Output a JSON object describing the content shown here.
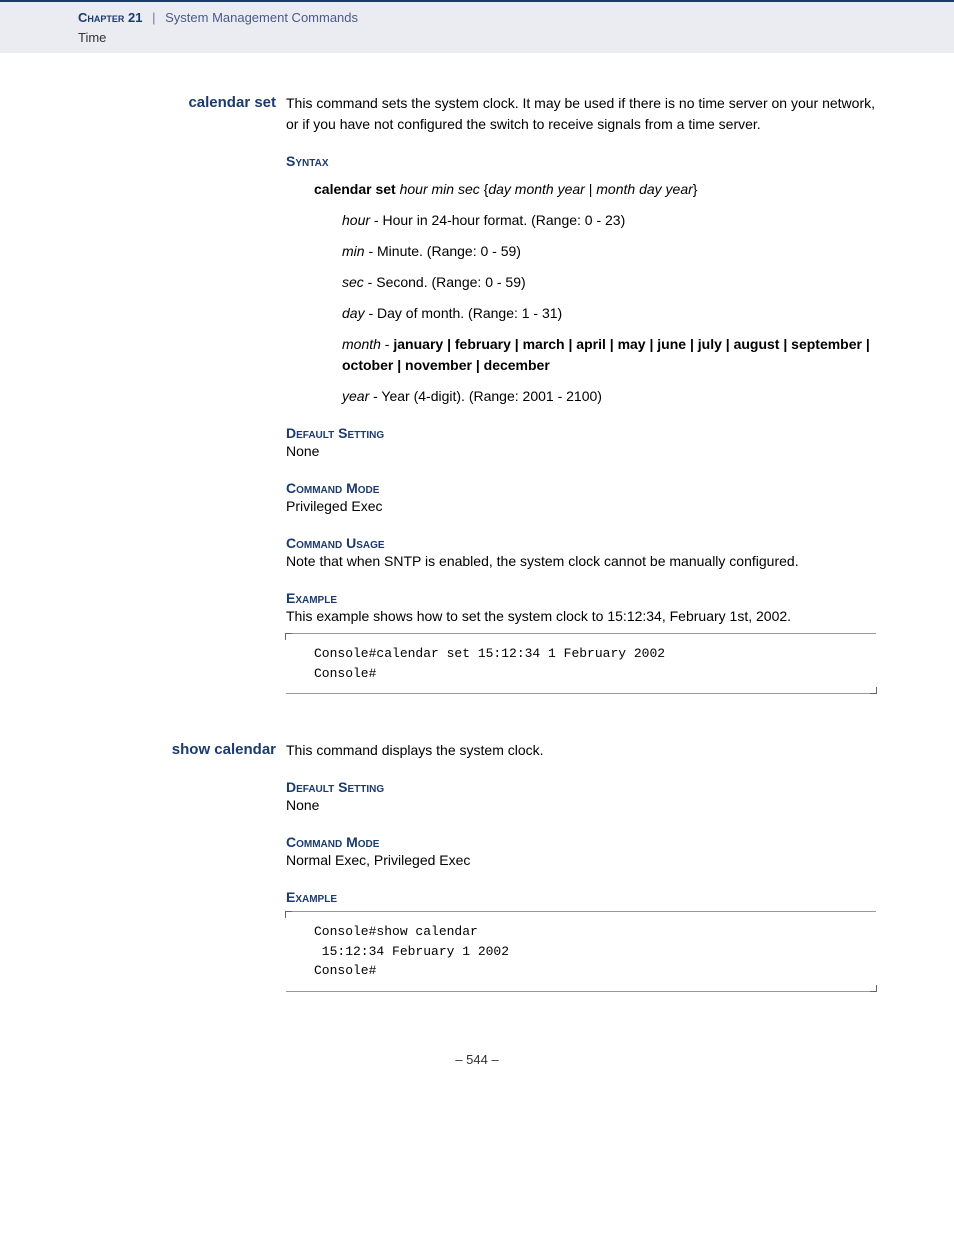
{
  "header": {
    "chapter": "Chapter 21",
    "sep": "|",
    "title": "System Management Commands",
    "sub": "Time"
  },
  "cmd1": {
    "label": "calendar set",
    "desc": "This command sets the system clock. It may be used if there is no time server on your network, or if you have not configured the switch to receive signals from a time server.",
    "syntax_head": "Syntax",
    "syntax_cmd_bold": "calendar set",
    "syntax_cmd_italic1": " hour min sec ",
    "syntax_cmd_brace1": "{",
    "syntax_cmd_italic2": "day month year",
    "syntax_cmd_pipe": " | ",
    "syntax_cmd_italic3": "month day year",
    "syntax_cmd_brace2": "}",
    "p_hour_i": "hour",
    "p_hour": " - Hour in 24-hour format. (Range: 0 - 23)",
    "p_min_i": "min",
    "p_min": " - Minute. (Range: 0 - 59)",
    "p_sec_i": "sec",
    "p_sec": " - Second. (Range: 0 - 59)",
    "p_day_i": "day",
    "p_day": " - Day of month. (Range: 1 - 31)",
    "p_month_i": "month",
    "p_month_dash": " - ",
    "p_month_bold": "january | february | march | april | may | june | july | august | september | october | november | december",
    "p_year_i": "year",
    "p_year": " - Year (4-digit). (Range: 2001 - 2100)",
    "default_head": "Default Setting",
    "default_val": "None",
    "mode_head": "Command Mode",
    "mode_val": "Privileged Exec",
    "usage_head": "Command Usage",
    "usage_val": "Note that when SNTP is enabled, the system clock cannot be manually configured.",
    "example_head": "Example",
    "example_desc": "This example shows how to set the system clock to 15:12:34, February 1st, 2002.",
    "code": "Console#calendar set 15:12:34 1 February 2002\nConsole#"
  },
  "cmd2": {
    "label": "show calendar",
    "desc": "This command displays the system clock.",
    "default_head": "Default Setting",
    "default_val": "None",
    "mode_head": "Command Mode",
    "mode_val": "Normal Exec, Privileged Exec",
    "example_head": "Example",
    "code": "Console#show calendar\n 15:12:34 February 1 2002\nConsole#"
  },
  "pagenum": "–  544  –"
}
